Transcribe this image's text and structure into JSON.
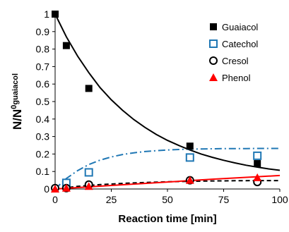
{
  "chart_data": {
    "type": "scatter",
    "xlabel": "Reaction time [min]",
    "ylabel": {
      "main": "N/N",
      "superscript": "0",
      "subscript": "guaiacol"
    },
    "xlim": [
      0,
      100
    ],
    "ylim": [
      0,
      1
    ],
    "x_ticks": [
      "0",
      "25",
      "50",
      "75",
      "100"
    ],
    "y_ticks": [
      "0",
      "0.1",
      "0.2",
      "0.3",
      "0.4",
      "0.5",
      "0.6",
      "0.7",
      "0.8",
      "0.9",
      "1"
    ],
    "grid": false,
    "legend_position": "top-right",
    "series": [
      {
        "name": "Guaiacol",
        "marker": "filled-square",
        "color": "#000000",
        "points": [
          [
            0,
            1.0
          ],
          [
            5,
            0.82
          ],
          [
            15,
            0.575
          ],
          [
            60,
            0.245
          ],
          [
            90,
            0.145
          ]
        ],
        "fit": {
          "style": "solid",
          "color": "#000000",
          "points": [
            [
              0,
              1.0
            ],
            [
              5,
              0.87
            ],
            [
              10,
              0.76
            ],
            [
              15,
              0.665
            ],
            [
              20,
              0.58
            ],
            [
              25,
              0.51
            ],
            [
              30,
              0.45
            ],
            [
              35,
              0.397
            ],
            [
              40,
              0.352
            ],
            [
              45,
              0.312
            ],
            [
              50,
              0.278
            ],
            [
              55,
              0.249
            ],
            [
              60,
              0.223
            ],
            [
              65,
              0.2
            ],
            [
              70,
              0.181
            ],
            [
              75,
              0.164
            ],
            [
              80,
              0.149
            ],
            [
              85,
              0.136
            ],
            [
              90,
              0.125
            ],
            [
              95,
              0.115
            ],
            [
              100,
              0.107
            ]
          ]
        }
      },
      {
        "name": "Catechol",
        "marker": "open-square",
        "color": "#1f77b4",
        "points": [
          [
            5,
            0.035
          ],
          [
            15,
            0.095
          ],
          [
            60,
            0.18
          ],
          [
            90,
            0.19
          ]
        ],
        "fit": {
          "style": "dash-dot",
          "color": "#1f77b4",
          "points": [
            [
              0,
              0.0
            ],
            [
              5,
              0.06
            ],
            [
              10,
              0.105
            ],
            [
              15,
              0.14
            ],
            [
              20,
              0.165
            ],
            [
              25,
              0.183
            ],
            [
              30,
              0.197
            ],
            [
              35,
              0.207
            ],
            [
              40,
              0.214
            ],
            [
              45,
              0.219
            ],
            [
              50,
              0.223
            ],
            [
              55,
              0.226
            ],
            [
              60,
              0.228
            ],
            [
              65,
              0.229
            ],
            [
              70,
              0.23
            ],
            [
              75,
              0.231
            ],
            [
              80,
              0.231
            ],
            [
              85,
              0.231
            ],
            [
              90,
              0.232
            ],
            [
              95,
              0.232
            ],
            [
              100,
              0.232
            ]
          ]
        }
      },
      {
        "name": "Cresol",
        "marker": "open-circle",
        "color": "#000000",
        "points": [
          [
            0,
            0.005
          ],
          [
            5,
            0.005
          ],
          [
            15,
            0.025
          ],
          [
            60,
            0.05
          ],
          [
            90,
            0.04
          ]
        ],
        "fit": {
          "style": "dashed",
          "color": "#000000",
          "points": [
            [
              0,
              0.0
            ],
            [
              10,
              0.015
            ],
            [
              20,
              0.025
            ],
            [
              30,
              0.032
            ],
            [
              40,
              0.037
            ],
            [
              50,
              0.041
            ],
            [
              60,
              0.044
            ],
            [
              70,
              0.046
            ],
            [
              80,
              0.047
            ],
            [
              90,
              0.048
            ],
            [
              100,
              0.048
            ]
          ]
        }
      },
      {
        "name": "Phenol",
        "marker": "filled-triangle",
        "color": "#ff0000",
        "points": [
          [
            0,
            0.0
          ],
          [
            5,
            0.005
          ],
          [
            15,
            0.015
          ],
          [
            60,
            0.05
          ],
          [
            90,
            0.065
          ]
        ],
        "fit": {
          "style": "solid",
          "color": "#ff0000",
          "points": [
            [
              0,
              0.0
            ],
            [
              10,
              0.008
            ],
            [
              20,
              0.016
            ],
            [
              30,
              0.024
            ],
            [
              40,
              0.032
            ],
            [
              50,
              0.04
            ],
            [
              60,
              0.048
            ],
            [
              70,
              0.056
            ],
            [
              80,
              0.063
            ],
            [
              90,
              0.07
            ],
            [
              100,
              0.077
            ]
          ]
        }
      }
    ]
  }
}
